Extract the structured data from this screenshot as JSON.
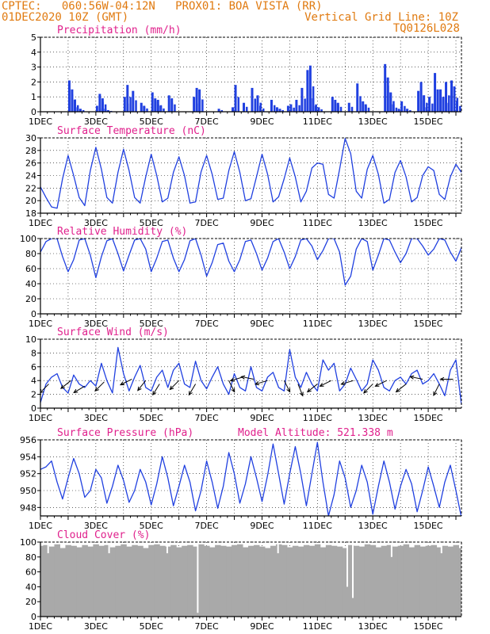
{
  "header": {
    "left_line1": "CPTEC:   060:56W-04:12N   PROX01: BOA VISTA (RR)",
    "left_line2": "01DEC2020 10Z (GMT)",
    "right_line2": "Vertical Grid Line: 10Z",
    "right_line3": "TQ0126L028"
  },
  "colors": {
    "header": "#e07a10",
    "title": "#e0208c",
    "series": "#2040e0",
    "cloud": "#a9a9a9"
  },
  "chart_data": [
    {
      "type": "bar",
      "title": "Precipitation (mm/h)",
      "ylim": [
        0,
        5
      ],
      "yticks": [
        0,
        1,
        2,
        3,
        4,
        5
      ],
      "xlim": [
        0,
        15.2
      ],
      "xticks": [
        "1DEC",
        "3DEC",
        "5DEC",
        "7DEC",
        "9DEC",
        "11DEC",
        "13DEC",
        "15DEC"
      ],
      "x": [
        1.0,
        1.1,
        1.2,
        1.3,
        1.4,
        2.0,
        2.1,
        2.2,
        2.3,
        2.4,
        3.0,
        3.1,
        3.3,
        3.6,
        3.7,
        4.0,
        4.1,
        4.2,
        4.3,
        4.6,
        4.7,
        5.5,
        5.6,
        5.7,
        6.4,
        6.9,
        7.0,
        7.3,
        7.6,
        7.8,
        7.9,
        8.3,
        8.5,
        8.6,
        8.9,
        9.0,
        9.2,
        9.4,
        9.6,
        9.7,
        9.8,
        9.9,
        10.0,
        10.5,
        10.6,
        10.7,
        11.1,
        11.4,
        11.6,
        11.7,
        12.4,
        12.5,
        12.6,
        12.7,
        12.9,
        13.0,
        13.2,
        13.6,
        13.7,
        13.8,
        13.9,
        14.0,
        14.2,
        14.3,
        14.4,
        14.5,
        14.6,
        14.7,
        14.8,
        14.9,
        15.0
      ],
      "values": [
        2.1,
        1.5,
        0.8,
        0.3,
        0.2,
        0.4,
        1.2,
        0.9,
        0.2,
        0.1,
        1.0,
        1.8,
        1.4,
        0.6,
        0.4,
        1.3,
        0.9,
        0.8,
        0.4,
        1.1,
        0.9,
        1.0,
        1.6,
        1.5,
        0.2,
        0.3,
        1.8,
        0.6,
        1.6,
        1.1,
        0.4,
        0.8,
        0.3,
        0.2,
        0.4,
        0.5,
        0.8,
        1.6,
        2.8,
        3.1,
        0.9,
        0.4,
        0.3,
        1.0,
        0.8,
        0.6,
        0.6,
        1.9,
        0.7,
        0.5,
        3.2,
        2.3,
        1.3,
        0.5,
        0.2,
        0.7,
        0.2,
        1.4,
        2.0,
        1.1,
        0.3,
        1.0,
        2.6,
        1.5,
        1.5,
        1.0,
        2.0,
        0.6,
        2.1,
        1.7,
        0.7
      ]
    },
    {
      "type": "line",
      "title": "Surface Temperature (nC)",
      "ylim": [
        18,
        30
      ],
      "yticks": [
        18,
        20,
        22,
        24,
        26,
        28,
        30
      ],
      "xlim": [
        0,
        15.2
      ],
      "xticks": [
        "1DEC",
        "3DEC",
        "5DEC",
        "7DEC",
        "9DEC",
        "11DEC",
        "13DEC",
        "15DEC"
      ],
      "x": [
        0.0,
        0.2,
        0.4,
        0.6,
        0.8,
        1.0,
        1.2,
        1.4,
        1.6,
        1.8,
        2.0,
        2.2,
        2.4,
        2.6,
        2.8,
        3.0,
        3.2,
        3.4,
        3.6,
        3.8,
        4.0,
        4.2,
        4.4,
        4.6,
        4.8,
        5.0,
        5.2,
        5.4,
        5.6,
        5.8,
        6.0,
        6.2,
        6.4,
        6.6,
        6.8,
        7.0,
        7.2,
        7.4,
        7.6,
        7.8,
        8.0,
        8.2,
        8.4,
        8.6,
        8.8,
        9.0,
        9.2,
        9.4,
        9.6,
        9.8,
        10.0,
        10.2,
        10.4,
        10.6,
        10.8,
        11.0,
        11.2,
        11.4,
        11.6,
        11.8,
        12.0,
        12.2,
        12.4,
        12.6,
        12.8,
        13.0,
        13.2,
        13.4,
        13.6,
        13.8,
        14.0,
        14.2,
        14.4,
        14.6,
        14.8,
        15.0,
        15.2
      ],
      "values": [
        22.2,
        20.5,
        19.0,
        18.8,
        23.5,
        27.2,
        24.0,
        20.5,
        19.2,
        24.8,
        28.5,
        25.0,
        20.5,
        19.6,
        24.5,
        28.2,
        24.8,
        20.5,
        19.6,
        23.8,
        27.4,
        24.0,
        19.8,
        20.4,
        24.5,
        27.0,
        24.0,
        19.6,
        19.8,
        24.6,
        27.2,
        24.2,
        20.2,
        20.4,
        24.8,
        27.8,
        24.5,
        20.0,
        20.3,
        23.8,
        27.4,
        24.2,
        19.8,
        20.6,
        23.5,
        26.8,
        23.8,
        19.8,
        21.5,
        25.2,
        26.0,
        25.8,
        21.0,
        20.4,
        25.0,
        29.9,
        27.5,
        21.5,
        20.4,
        25.0,
        27.2,
        24.2,
        19.6,
        20.2,
        24.5,
        26.4,
        23.8,
        19.8,
        20.5,
        24.0,
        25.4,
        24.8,
        21.0,
        20.2,
        23.8,
        25.8,
        24.5
      ]
    },
    {
      "type": "line",
      "title": "Relative Humidity (%)",
      "ylim": [
        0,
        100
      ],
      "yticks": [
        0,
        20,
        40,
        60,
        80,
        100
      ],
      "xlim": [
        0,
        15.2
      ],
      "xticks": [
        "1DEC",
        "3DEC",
        "5DEC",
        "7DEC",
        "9DEC",
        "11DEC",
        "13DEC",
        "15DEC"
      ],
      "x": [
        0.0,
        0.2,
        0.4,
        0.6,
        0.8,
        1.0,
        1.2,
        1.4,
        1.6,
        1.8,
        2.0,
        2.2,
        2.4,
        2.6,
        2.8,
        3.0,
        3.2,
        3.4,
        3.6,
        3.8,
        4.0,
        4.2,
        4.4,
        4.6,
        4.8,
        5.0,
        5.2,
        5.4,
        5.6,
        5.8,
        6.0,
        6.2,
        6.4,
        6.6,
        6.8,
        7.0,
        7.2,
        7.4,
        7.6,
        7.8,
        8.0,
        8.2,
        8.4,
        8.6,
        8.8,
        9.0,
        9.2,
        9.4,
        9.6,
        9.8,
        10.0,
        10.2,
        10.4,
        10.6,
        10.8,
        11.0,
        11.2,
        11.4,
        11.6,
        11.8,
        12.0,
        12.2,
        12.4,
        12.6,
        12.8,
        13.0,
        13.2,
        13.4,
        13.6,
        13.8,
        14.0,
        14.2,
        14.4,
        14.6,
        14.8,
        15.0,
        15.2
      ],
      "values": [
        82,
        96,
        100,
        100,
        76,
        56,
        72,
        98,
        100,
        78,
        48,
        76,
        97,
        100,
        80,
        57,
        78,
        98,
        100,
        86,
        56,
        74,
        96,
        98,
        74,
        56,
        72,
        97,
        100,
        78,
        50,
        68,
        92,
        94,
        70,
        56,
        72,
        96,
        98,
        80,
        58,
        74,
        96,
        100,
        82,
        60,
        76,
        98,
        100,
        90,
        72,
        84,
        100,
        100,
        82,
        38,
        50,
        86,
        100,
        96,
        58,
        78,
        100,
        98,
        82,
        68,
        80,
        100,
        100,
        90,
        78,
        86,
        100,
        98,
        82,
        70,
        88
      ]
    },
    {
      "type": "line",
      "title": "Surface Wind (m/s)",
      "ylim": [
        0,
        10
      ],
      "yticks": [
        0,
        2,
        4,
        6,
        8,
        10
      ],
      "xlim": [
        0,
        15.2
      ],
      "xticks": [
        "1DEC",
        "3DEC",
        "5DEC",
        "7DEC",
        "9DEC",
        "11DEC",
        "13DEC",
        "15DEC"
      ],
      "x": [
        0.0,
        0.2,
        0.4,
        0.6,
        0.8,
        1.0,
        1.2,
        1.4,
        1.6,
        1.8,
        2.0,
        2.2,
        2.4,
        2.6,
        2.8,
        3.0,
        3.2,
        3.4,
        3.6,
        3.8,
        4.0,
        4.2,
        4.4,
        4.6,
        4.8,
        5.0,
        5.2,
        5.4,
        5.6,
        5.8,
        6.0,
        6.2,
        6.4,
        6.6,
        6.8,
        7.0,
        7.2,
        7.4,
        7.6,
        7.8,
        8.0,
        8.2,
        8.4,
        8.6,
        8.8,
        9.0,
        9.2,
        9.4,
        9.6,
        9.8,
        10.0,
        10.2,
        10.4,
        10.6,
        10.8,
        11.0,
        11.2,
        11.4,
        11.6,
        11.8,
        12.0,
        12.2,
        12.4,
        12.6,
        12.8,
        13.0,
        13.2,
        13.4,
        13.6,
        13.8,
        14.0,
        14.2,
        14.4,
        14.6,
        14.8,
        15.0,
        15.2
      ],
      "values": [
        0.8,
        3.5,
        4.5,
        5.0,
        3.0,
        2.2,
        4.8,
        3.5,
        3.0,
        4.0,
        3.2,
        6.5,
        4.0,
        2.2,
        8.8,
        5.0,
        2.5,
        4.5,
        6.2,
        3.0,
        2.5,
        4.5,
        5.5,
        3.0,
        5.5,
        6.5,
        3.5,
        3.0,
        6.8,
        4.0,
        2.8,
        4.5,
        6.0,
        3.5,
        2.0,
        5.0,
        3.0,
        2.5,
        6.0,
        3.0,
        2.5,
        4.5,
        5.2,
        3.0,
        2.5,
        8.5,
        4.5,
        3.0,
        5.2,
        3.5,
        2.5,
        7.0,
        5.5,
        6.5,
        2.5,
        3.5,
        5.8,
        4.2,
        2.5,
        3.5,
        7.0,
        5.5,
        3.0,
        2.5,
        4.0,
        4.5,
        3.5,
        5.0,
        5.5,
        3.5,
        4.0,
        5.0,
        3.5,
        1.8,
        5.5,
        7.0,
        0.5
      ],
      "barbs": [
        {
          "x": 0.3,
          "y": 3.5,
          "u": -1,
          "v": -1
        },
        {
          "x": 1.1,
          "y": 4.0,
          "u": -1,
          "v": -0.8
        },
        {
          "x": 1.6,
          "y": 3.2,
          "u": -1,
          "v": -0.6
        },
        {
          "x": 2.3,
          "y": 3.8,
          "u": -1,
          "v": -1
        },
        {
          "x": 3.3,
          "y": 4.2,
          "u": -1,
          "v": -0.5
        },
        {
          "x": 3.8,
          "y": 4.0,
          "u": -0.8,
          "v": -1
        },
        {
          "x": 4.3,
          "y": 3.5,
          "u": -0.8,
          "v": -1.3
        },
        {
          "x": 5.0,
          "y": 4.0,
          "u": -1,
          "v": -1
        },
        {
          "x": 5.6,
          "y": 3.5,
          "u": -0.6,
          "v": -1
        },
        {
          "x": 6.8,
          "y": 4.0,
          "u": 0.5,
          "v": -1
        },
        {
          "x": 7.3,
          "y": 4.5,
          "u": -1,
          "v": -0.3
        },
        {
          "x": 7.7,
          "y": 4.2,
          "u": -1,
          "v": 0.2
        },
        {
          "x": 8.2,
          "y": 4.0,
          "u": -1,
          "v": -0.3
        },
        {
          "x": 8.8,
          "y": 4.0,
          "u": 0.5,
          "v": -1
        },
        {
          "x": 9.3,
          "y": 3.5,
          "u": 0.4,
          "v": -1
        },
        {
          "x": 10.0,
          "y": 3.5,
          "u": -1,
          "v": -0.8
        },
        {
          "x": 10.5,
          "y": 4.0,
          "u": -1,
          "v": -0.5
        },
        {
          "x": 11.3,
          "y": 4.0,
          "u": -1,
          "v": -0.3
        },
        {
          "x": 12.0,
          "y": 3.5,
          "u": -1,
          "v": -1
        },
        {
          "x": 12.5,
          "y": 4.0,
          "u": -1,
          "v": -0.5
        },
        {
          "x": 13.2,
          "y": 3.5,
          "u": -1,
          "v": -0.8
        },
        {
          "x": 13.8,
          "y": 4.2,
          "u": -1,
          "v": 0.2
        },
        {
          "x": 14.4,
          "y": 3.5,
          "u": -0.5,
          "v": -1
        },
        {
          "x": 14.9,
          "y": 4.2,
          "u": -1,
          "v": 0
        }
      ]
    },
    {
      "type": "line",
      "title": "Surface Pressure (hPa)",
      "annotation": "Model Altitude: 521.338 m",
      "ylim": [
        947,
        956
      ],
      "yticks": [
        948,
        950,
        952,
        954,
        956
      ],
      "xlim": [
        0,
        15.2
      ],
      "xticks": [
        "1DEC",
        "3DEC",
        "5DEC",
        "7DEC",
        "9DEC",
        "11DEC",
        "13DEC",
        "15DEC"
      ],
      "x": [
        0.0,
        0.2,
        0.4,
        0.6,
        0.8,
        1.0,
        1.2,
        1.4,
        1.6,
        1.8,
        2.0,
        2.2,
        2.4,
        2.6,
        2.8,
        3.0,
        3.2,
        3.4,
        3.6,
        3.8,
        4.0,
        4.2,
        4.4,
        4.6,
        4.8,
        5.0,
        5.2,
        5.4,
        5.6,
        5.8,
        6.0,
        6.2,
        6.4,
        6.6,
        6.8,
        7.0,
        7.2,
        7.4,
        7.6,
        7.8,
        8.0,
        8.2,
        8.4,
        8.6,
        8.8,
        9.0,
        9.2,
        9.4,
        9.6,
        9.8,
        10.0,
        10.2,
        10.4,
        10.6,
        10.8,
        11.0,
        11.2,
        11.4,
        11.6,
        11.8,
        12.0,
        12.2,
        12.4,
        12.6,
        12.8,
        13.0,
        13.2,
        13.4,
        13.6,
        13.8,
        14.0,
        14.2,
        14.4,
        14.6,
        14.8,
        15.0,
        15.2
      ],
      "values": [
        952.5,
        952.8,
        953.5,
        951.0,
        949.0,
        951.5,
        953.8,
        952.0,
        949.2,
        950.0,
        952.5,
        951.5,
        948.5,
        950.5,
        953.0,
        951.2,
        948.6,
        950.0,
        952.5,
        951.0,
        948.3,
        950.8,
        954.0,
        951.5,
        948.2,
        950.5,
        953.0,
        951.0,
        947.6,
        950.0,
        953.5,
        951.0,
        947.9,
        950.5,
        954.5,
        952.0,
        948.5,
        950.8,
        954.0,
        951.5,
        948.7,
        951.8,
        955.5,
        952.0,
        948.4,
        952.0,
        955.2,
        952.0,
        948.2,
        952.0,
        955.7,
        951.0,
        947.0,
        949.5,
        953.5,
        951.5,
        948.0,
        950.0,
        953.0,
        951.0,
        947.2,
        950.5,
        953.5,
        951.0,
        947.8,
        950.5,
        952.5,
        950.8,
        947.5,
        950.0,
        952.8,
        950.5,
        948.0,
        951.0,
        953.0,
        950.0,
        946.8
      ]
    },
    {
      "type": "bar",
      "title": "Cloud Cover (%)",
      "ylim": [
        0,
        100
      ],
      "yticks": [
        0,
        20,
        40,
        60,
        80,
        100
      ],
      "xlim": [
        0,
        15.2
      ],
      "xticks": [
        "1DEC",
        "3DEC",
        "5DEC",
        "7DEC",
        "9DEC",
        "11DEC",
        "13DEC",
        "15DEC"
      ],
      "x": [
        0.0,
        0.2,
        0.4,
        0.6,
        0.8,
        1.0,
        1.2,
        1.4,
        1.6,
        1.8,
        2.0,
        2.2,
        2.4,
        2.6,
        2.8,
        3.0,
        3.2,
        3.4,
        3.6,
        3.8,
        4.0,
        4.2,
        4.4,
        4.6,
        4.8,
        5.0,
        5.2,
        5.4,
        5.6,
        5.8,
        6.0,
        6.2,
        6.4,
        6.6,
        6.8,
        7.0,
        7.2,
        7.4,
        7.6,
        7.8,
        8.0,
        8.2,
        8.4,
        8.6,
        8.8,
        9.0,
        9.2,
        9.4,
        9.6,
        9.8,
        10.0,
        10.2,
        10.4,
        10.6,
        10.8,
        11.0,
        11.2,
        11.4,
        11.6,
        11.8,
        12.0,
        12.2,
        12.4,
        12.6,
        12.8,
        13.0,
        13.2,
        13.4,
        13.6,
        13.8,
        14.0,
        14.2,
        14.4,
        14.6,
        14.8,
        15.0,
        15.2
      ],
      "values": [
        95,
        96,
        94,
        97,
        92,
        96,
        95,
        93,
        96,
        94,
        97,
        95,
        96,
        93,
        95,
        97,
        94,
        96,
        95,
        92,
        96,
        97,
        95,
        94,
        96,
        93,
        95,
        96,
        94,
        97,
        95,
        93,
        96,
        95,
        94,
        96,
        97,
        93,
        95,
        96,
        94,
        92,
        95,
        97,
        96,
        93,
        95,
        94,
        96,
        95,
        97,
        93,
        96,
        95,
        94,
        92,
        96,
        95,
        94,
        97,
        96,
        93,
        95,
        96,
        94,
        95,
        97,
        93,
        96,
        94,
        95,
        96,
        93,
        95,
        94,
        96,
        92
      ],
      "dips": [
        {
          "x": 5.65,
          "value": 5
        },
        {
          "x": 11.05,
          "value": 40
        },
        {
          "x": 11.25,
          "value": 25
        },
        {
          "x": 2.45,
          "value": 85
        },
        {
          "x": 4.55,
          "value": 85
        },
        {
          "x": 8.55,
          "value": 85
        },
        {
          "x": 12.65,
          "value": 80
        },
        {
          "x": 14.45,
          "value": 85
        },
        {
          "x": 0.25,
          "value": 85
        }
      ]
    }
  ]
}
